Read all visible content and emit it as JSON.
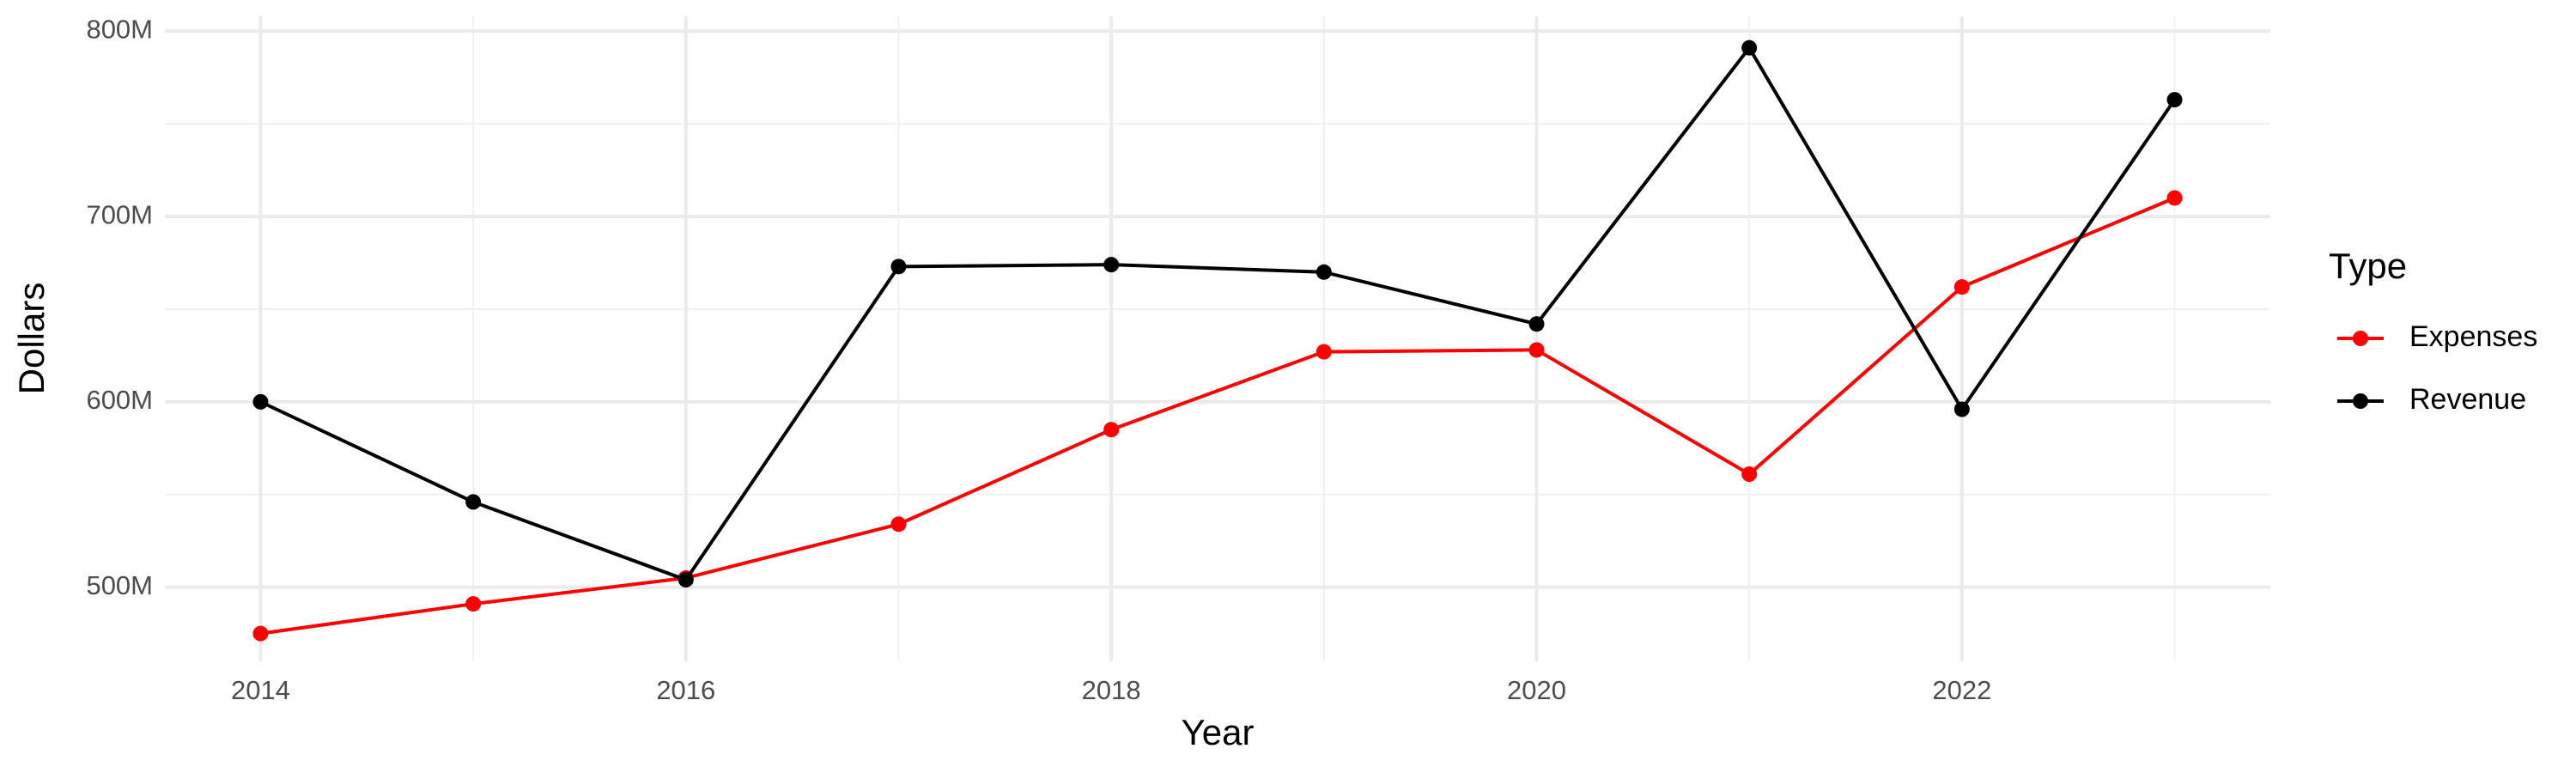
{
  "chart_data": {
    "type": "line",
    "x_label": "Year",
    "y_label": "Dollars",
    "x": [
      2014,
      2015,
      2016,
      2017,
      2018,
      2019,
      2020,
      2021,
      2022,
      2023
    ],
    "series": [
      {
        "name": "Expenses",
        "color": "#ff0000",
        "values": [
          475000000,
          491000000,
          505000000,
          534000000,
          585000000,
          627000000,
          628000000,
          561000000,
          662000000,
          710000000
        ]
      },
      {
        "name": "Revenue",
        "color": "#000000",
        "values": [
          600000000,
          546000000,
          504000000,
          673000000,
          674000000,
          670000000,
          642000000,
          791000000,
          596000000,
          763000000
        ]
      }
    ],
    "xlim": [
      2013.55,
      2023.45
    ],
    "xticks": [
      2014,
      2016,
      2018,
      2020,
      2022
    ],
    "ylim": [
      460000000,
      808000000
    ],
    "yticks": [
      {
        "value": 500000000,
        "label": "500M"
      },
      {
        "value": 600000000,
        "label": "600M"
      },
      {
        "value": 700000000,
        "label": "700M"
      },
      {
        "value": 800000000,
        "label": "800M"
      }
    ],
    "grid": true,
    "legend_title": "Type",
    "legend_position": "right"
  }
}
